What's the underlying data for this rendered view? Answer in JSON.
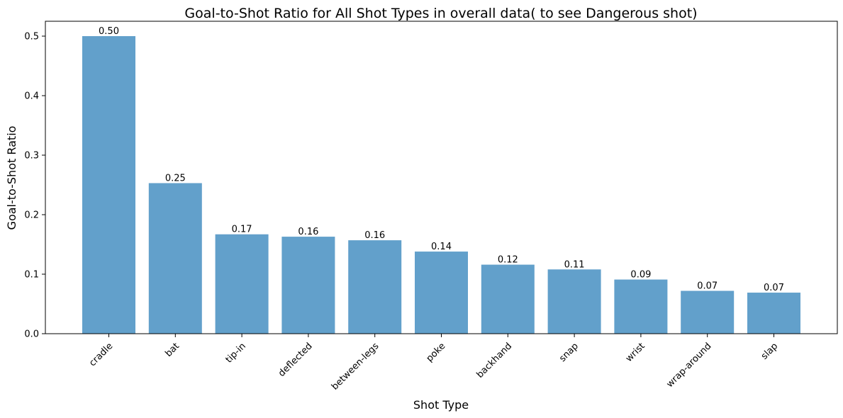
{
  "chart_data": {
    "type": "bar",
    "title": "Goal-to-Shot Ratio for All Shot Types in overall data( to see Dangerous shot)",
    "xlabel": "Shot Type",
    "ylabel": "Goal-to-Shot Ratio",
    "categories": [
      "cradle",
      "bat",
      "tip-in",
      "deflected",
      "between-legs",
      "poke",
      "backhand",
      "snap",
      "wrist",
      "wrap-around",
      "slap"
    ],
    "values": [
      0.5,
      0.253,
      0.167,
      0.163,
      0.157,
      0.138,
      0.116,
      0.108,
      0.091,
      0.072,
      0.069
    ],
    "data_labels": [
      "0.50",
      "0.25",
      "0.17",
      "0.16",
      "0.16",
      "0.14",
      "0.12",
      "0.11",
      "0.09",
      "0.07",
      "0.07"
    ],
    "ylim": [
      0,
      0.525
    ],
    "yticks": [
      0.0,
      0.1,
      0.2,
      0.3,
      0.4,
      0.5
    ],
    "ytick_labels": [
      "0.0",
      "0.1",
      "0.2",
      "0.3",
      "0.4",
      "0.5"
    ],
    "grid": false,
    "bar_color": "#62a0cb"
  }
}
